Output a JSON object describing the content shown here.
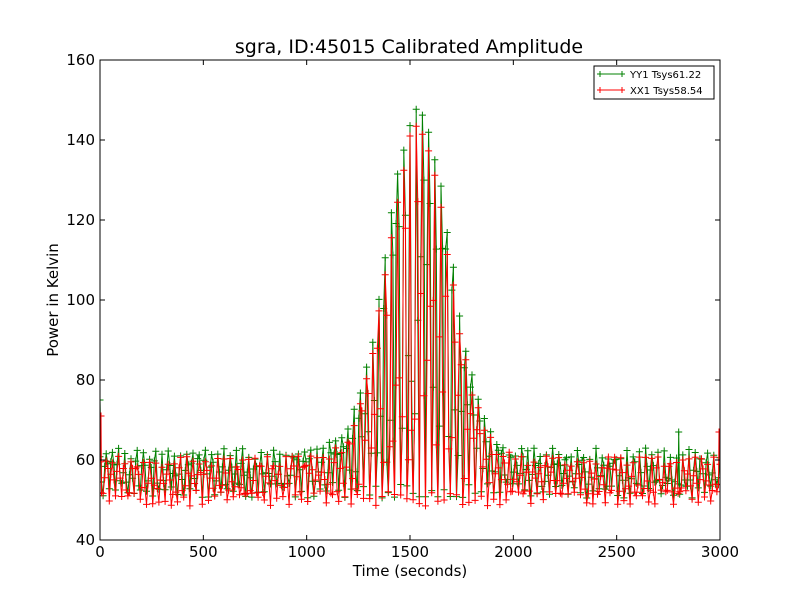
{
  "chart_data": {
    "type": "line",
    "title": "sgra, ID:45015 Calibrated Amplitude",
    "xlabel": "Time (seconds)",
    "ylabel": "Power in Kelvin",
    "xlim": [
      0,
      3000
    ],
    "ylim": [
      40,
      160
    ],
    "xticks": [
      "0",
      "500",
      "1000",
      "1500",
      "2000",
      "2500",
      "3000"
    ],
    "yticks": [
      "40",
      "60",
      "80",
      "100",
      "120",
      "140",
      "160"
    ],
    "grid": false,
    "legend_position": "top-right",
    "marker": "+",
    "series": [
      {
        "name": "YY1 Tsys61.22",
        "color": "#008000",
        "baseline": 52.5,
        "peak_level": 61.5,
        "peak_center": 1540,
        "peak_height": 86,
        "peak_width": 150,
        "edge_spikes": [
          [
            0,
            75
          ],
          [
            2800,
            67
          ]
        ]
      },
      {
        "name": "XX1 Tsys58.54",
        "color": "#ff0000",
        "baseline": 50.5,
        "peak_level": 59.5,
        "peak_center": 1540,
        "peak_height": 83,
        "peak_width": 148,
        "edge_spikes": [
          [
            5,
            71
          ],
          [
            2995,
            67
          ]
        ]
      }
    ]
  }
}
